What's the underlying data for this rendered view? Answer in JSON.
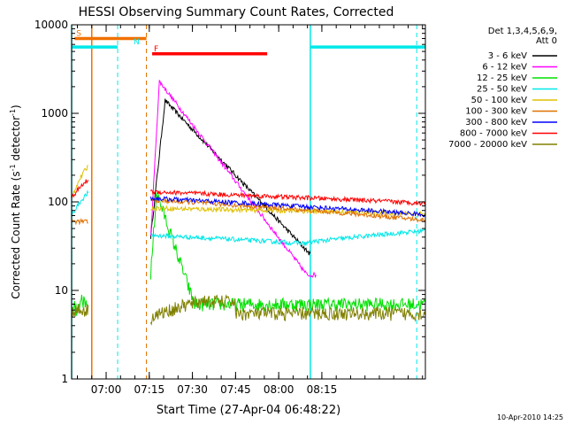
{
  "chart_data": {
    "type": "line",
    "title": "HESSI Observing Summary Count Rates, Corrected",
    "xlabel": "Start Time (27-Apr-04 06:48:22)",
    "ylabel_main": "Corrected Count Rate (s",
    "ylabel_sup1": "-1",
    "ylabel_mid": " detector",
    "ylabel_sup2": "-1",
    "ylabel_end": ")",
    "footer": "10-Apr-2010 14:25",
    "yscale": "log",
    "ylim": [
      1,
      10000
    ],
    "xlim_min": [
      -12,
      111
    ],
    "y_ticks": [
      "1",
      "10",
      "100",
      "1000",
      "10000"
    ],
    "x_ticks": [
      {
        "min": 0,
        "label": "07:00"
      },
      {
        "min": 30,
        "label": "07:30"
      },
      {
        "min": 60,
        "label": "08:00"
      },
      {
        "min": 15,
        "label": "07:15"
      },
      {
        "min": 45,
        "label": "07:45"
      },
      {
        "min": 75,
        "label": "08:15"
      }
    ],
    "legend_title": [
      "Det 1,3,4,5,6,9,",
      "Att 0"
    ],
    "series": [
      {
        "name": "3 - 6 keV",
        "color": "#000000"
      },
      {
        "name": "6 - 12 keV",
        "color": "#ff00ff"
      },
      {
        "name": "12 - 25 keV",
        "color": "#00e000"
      },
      {
        "name": "25 - 50 keV",
        "color": "#00e8e8"
      },
      {
        "name": "50 - 100 keV",
        "color": "#e0c000"
      },
      {
        "name": "100 - 300 keV",
        "color": "#e07000"
      },
      {
        "name": "300 - 800 keV",
        "color": "#0000ff"
      },
      {
        "name": "800 - 7000 keV",
        "color": "#ff0000"
      },
      {
        "name": "7000 - 20000 keV",
        "color": "#808000"
      }
    ],
    "flags": [
      {
        "label": "S",
        "color": "#f07000",
        "start": -11,
        "end": 14,
        "y": 7000
      },
      {
        "label": "N",
        "color": "#00e8e8",
        "start": -12,
        "end": 4,
        "y": 5600
      },
      {
        "label": "N",
        "color": "#00e8e8",
        "start": 71,
        "end": 111,
        "y": 5600
      },
      {
        "label": "F",
        "color": "#ff0000",
        "start": 16,
        "end": 56,
        "y": 4700
      }
    ],
    "night_lines_solid": [
      -12,
      71
    ],
    "night_lines_dashed": [
      4,
      14,
      108
    ],
    "saa_lines": [
      -5,
      14
    ]
  }
}
